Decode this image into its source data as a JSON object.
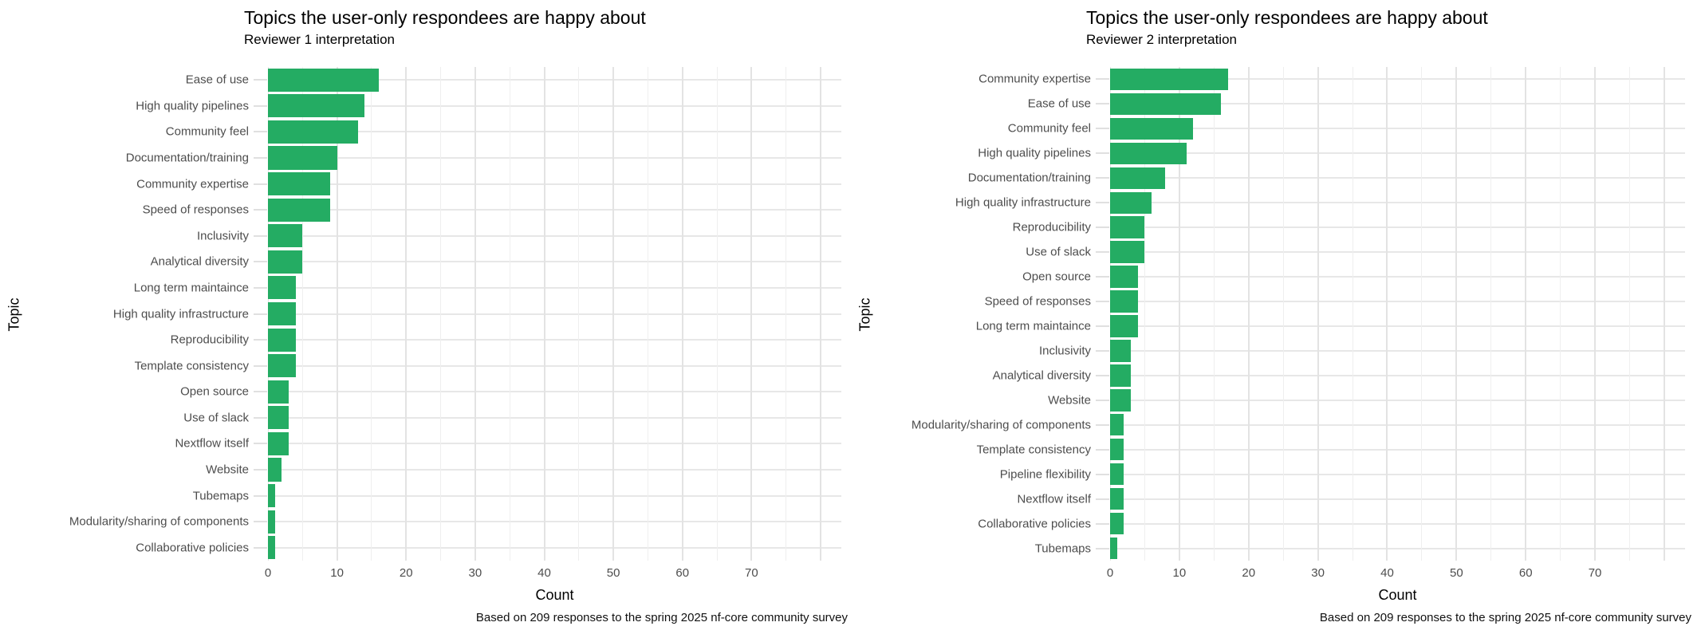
{
  "page": {
    "background": "#ffffff"
  },
  "chart_data": [
    {
      "type": "bar",
      "orientation": "horizontal",
      "title": "Topics the user-only respondees are happy about",
      "subtitle": "Reviewer 1 interpretation",
      "xlabel": "Count",
      "ylabel": "Topic",
      "caption": "Based on 209 responses to the spring 2025 nf-core community survey",
      "bar_color": "#24AC63",
      "grid": "on",
      "legend": "none",
      "xlim": [
        0,
        83
      ],
      "xticks": [
        "0",
        "10",
        "20",
        "30",
        "40",
        "50",
        "60",
        "70"
      ],
      "xtick_values": [
        0,
        10,
        20,
        30,
        40,
        50,
        60,
        70
      ],
      "categories": [
        "Ease of use",
        "High quality pipelines",
        "Community feel",
        "Documentation/training",
        "Community expertise",
        "Speed of responses",
        "Inclusivity",
        "Analytical diversity",
        "Long term maintaince",
        "High quality infrastructure",
        "Reproducibility",
        "Template consistency",
        "Open source",
        "Use of slack",
        "Nextflow itself",
        "Website",
        "Tubemaps",
        "Modularity/sharing of components",
        "Collaborative policies"
      ],
      "values": [
        16,
        14,
        13,
        10,
        9,
        9,
        5,
        5,
        4,
        4,
        4,
        4,
        3,
        3,
        3,
        2,
        1,
        1,
        1
      ]
    },
    {
      "type": "bar",
      "orientation": "horizontal",
      "title": "Topics the user-only respondees are happy about",
      "subtitle": "Reviewer 2 interpretation",
      "xlabel": "Count",
      "ylabel": "Topic",
      "caption": "Based on 209 responses to the spring 2025 nf-core community survey",
      "bar_color": "#24AC63",
      "grid": "on",
      "legend": "none",
      "xlim": [
        0,
        83
      ],
      "xticks": [
        "0",
        "10",
        "20",
        "30",
        "40",
        "50",
        "60",
        "70"
      ],
      "xtick_values": [
        0,
        10,
        20,
        30,
        40,
        50,
        60,
        70
      ],
      "categories": [
        "Community expertise",
        "Ease of use",
        "Community feel",
        "High quality pipelines",
        "Documentation/training",
        "High quality infrastructure",
        "Reproducibility",
        "Use of slack",
        "Open source",
        "Speed of responses",
        "Long term maintaince",
        "Inclusivity",
        "Analytical diversity",
        "Website",
        "Modularity/sharing of components",
        "Template consistency",
        "Pipeline flexibility",
        "Nextflow itself",
        "Collaborative policies",
        "Tubemaps"
      ],
      "values": [
        17,
        16,
        12,
        11,
        8,
        6,
        5,
        5,
        4,
        4,
        4,
        3,
        3,
        3,
        2,
        2,
        2,
        2,
        2,
        1
      ]
    }
  ]
}
